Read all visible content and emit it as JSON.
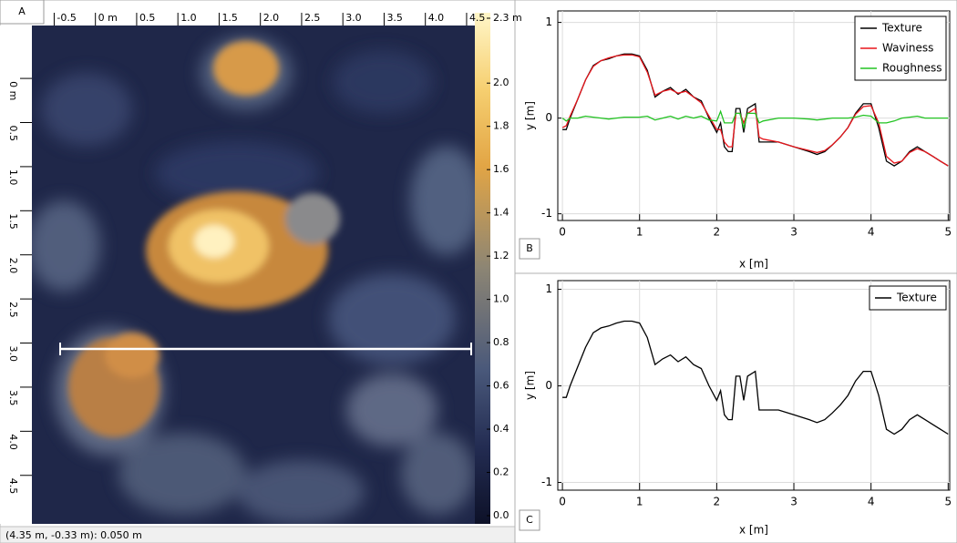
{
  "panel_a": {
    "label": "A",
    "status": "(4.35 m, -0.33 m): 0.050 m",
    "x_ruler": {
      "xlim": [
        -0.77,
        4.6
      ],
      "xticks": [
        -0.5,
        {
          "value": 0,
          "label": "0 m"
        },
        0.5,
        {
          "value": 1,
          "label": "1.0"
        },
        1.5,
        {
          "value": 2,
          "label": "2.0"
        },
        2.5,
        {
          "value": 3,
          "label": "3.0"
        },
        3.5,
        {
          "value": 4,
          "label": "4.0"
        },
        4.5
      ]
    },
    "y_ruler": {
      "ylim": [
        -0.6,
        5.05
      ],
      "yticks": [
        {
          "value": 0,
          "label": "0 m"
        },
        0.5,
        {
          "value": 1,
          "label": "1.0"
        },
        1.5,
        {
          "value": 2,
          "label": "2.0"
        },
        2.5,
        {
          "value": 3,
          "label": "3.0"
        },
        3.5,
        {
          "value": 4,
          "label": "4.0"
        },
        4.5
      ]
    },
    "colorbar": {
      "lim": [
        0,
        2.3
      ],
      "ticks": [
        {
          "value": 2.3,
          "label": "2.3 m"
        },
        {
          "value": 2,
          "label": "2.0"
        },
        1.8,
        1.6,
        1.4,
        1.2,
        {
          "value": 1,
          "label": "1.0"
        },
        0.8,
        0.6,
        0.4,
        0.2,
        {
          "value": 0,
          "label": "0.0"
        }
      ]
    }
  },
  "chart_data": [
    {
      "type": "line",
      "panel_label": "B",
      "x_label": "x [m]",
      "y_label": "y [m]",
      "xlim": [
        -0.06,
        5.02
      ],
      "ylim": [
        -1.07,
        1.12
      ],
      "xticks": [
        0,
        1,
        2,
        3,
        4,
        5
      ],
      "yticks": [
        -1,
        0,
        1
      ],
      "grid": true,
      "legend": "upper right",
      "x": [
        0,
        0.05,
        0.1,
        0.2,
        0.3,
        0.4,
        0.5,
        0.6,
        0.7,
        0.8,
        0.9,
        1.0,
        1.1,
        1.2,
        1.3,
        1.4,
        1.5,
        1.6,
        1.7,
        1.8,
        1.9,
        2.0,
        2.05,
        2.1,
        2.15,
        2.2,
        2.25,
        2.3,
        2.35,
        2.4,
        2.5,
        2.55,
        2.6,
        2.8,
        3.0,
        3.2,
        3.3,
        3.4,
        3.5,
        3.6,
        3.7,
        3.8,
        3.9,
        4.0,
        4.1,
        4.2,
        4.3,
        4.4,
        4.5,
        4.6,
        4.7,
        4.8,
        4.9,
        5.0
      ],
      "series": [
        {
          "name": "Texture",
          "color": "#000000",
          "values": [
            -0.12,
            -0.12,
            0,
            0.2,
            0.4,
            0.55,
            0.6,
            0.62,
            0.65,
            0.67,
            0.67,
            0.65,
            0.5,
            0.22,
            0.28,
            0.32,
            0.25,
            0.3,
            0.22,
            0.18,
            0,
            -0.15,
            -0.05,
            -0.3,
            -0.35,
            -0.35,
            0.1,
            0.1,
            -0.15,
            0.1,
            0.15,
            -0.25,
            -0.25,
            -0.25,
            -0.3,
            -0.35,
            -0.38,
            -0.35,
            -0.28,
            -0.2,
            -0.1,
            0.05,
            0.15,
            0.15,
            -0.1,
            -0.45,
            -0.5,
            -0.45,
            -0.35,
            -0.3,
            -0.35,
            -0.4,
            -0.45,
            -0.5
          ]
        },
        {
          "name": "Waviness",
          "color": "#e8151b",
          "values": [
            -0.1,
            -0.08,
            0.02,
            0.2,
            0.4,
            0.54,
            0.6,
            0.63,
            0.65,
            0.66,
            0.66,
            0.64,
            0.48,
            0.24,
            0.28,
            0.3,
            0.26,
            0.28,
            0.22,
            0.16,
            0.02,
            -0.12,
            -0.12,
            -0.25,
            -0.3,
            -0.3,
            0.05,
            0.05,
            -0.05,
            0.05,
            0.1,
            -0.2,
            -0.22,
            -0.25,
            -0.3,
            -0.34,
            -0.36,
            -0.34,
            -0.28,
            -0.2,
            -0.1,
            0.04,
            0.12,
            0.13,
            -0.05,
            -0.4,
            -0.47,
            -0.45,
            -0.36,
            -0.32,
            -0.35,
            -0.4,
            -0.45,
            -0.5
          ]
        },
        {
          "name": "Roughness",
          "color": "#22c322",
          "values": [
            0,
            -0.03,
            0,
            0,
            0.02,
            0.01,
            0,
            -0.01,
            0,
            0.01,
            0.01,
            0.01,
            0.02,
            -0.02,
            0,
            0.02,
            -0.01,
            0.02,
            0,
            0.02,
            -0.02,
            -0.03,
            0.07,
            -0.05,
            -0.05,
            -0.05,
            0.05,
            0.05,
            -0.1,
            0.05,
            0.05,
            -0.05,
            -0.03,
            0,
            0,
            -0.01,
            -0.02,
            -0.01,
            0,
            0,
            0,
            0.01,
            0.03,
            0.02,
            -0.05,
            -0.05,
            -0.03,
            0,
            0.01,
            0.02,
            0,
            0,
            0,
            0
          ]
        }
      ]
    },
    {
      "type": "line",
      "panel_label": "C",
      "x_label": "x [m]",
      "y_label": "y [m]",
      "xlim": [
        -0.06,
        5.02
      ],
      "ylim": [
        -1.08,
        1.09
      ],
      "xticks": [
        0,
        1,
        2,
        3,
        4,
        5
      ],
      "yticks": [
        -1,
        0,
        1
      ],
      "grid": true,
      "legend": "upper right",
      "x": [
        0,
        0.05,
        0.1,
        0.2,
        0.3,
        0.4,
        0.5,
        0.6,
        0.7,
        0.8,
        0.9,
        1.0,
        1.1,
        1.2,
        1.3,
        1.4,
        1.5,
        1.6,
        1.7,
        1.8,
        1.9,
        2.0,
        2.05,
        2.1,
        2.15,
        2.2,
        2.25,
        2.3,
        2.35,
        2.4,
        2.5,
        2.55,
        2.6,
        2.8,
        3.0,
        3.2,
        3.3,
        3.4,
        3.5,
        3.6,
        3.7,
        3.8,
        3.9,
        4.0,
        4.1,
        4.2,
        4.3,
        4.4,
        4.5,
        4.6,
        4.7,
        4.8,
        4.9,
        5.0
      ],
      "series": [
        {
          "name": "Texture",
          "color": "#000000",
          "values": [
            -0.12,
            -0.12,
            0,
            0.2,
            0.4,
            0.55,
            0.6,
            0.62,
            0.65,
            0.67,
            0.67,
            0.65,
            0.5,
            0.22,
            0.28,
            0.32,
            0.25,
            0.3,
            0.22,
            0.18,
            0,
            -0.15,
            -0.05,
            -0.3,
            -0.35,
            -0.35,
            0.1,
            0.1,
            -0.15,
            0.1,
            0.15,
            -0.25,
            -0.25,
            -0.25,
            -0.3,
            -0.35,
            -0.38,
            -0.35,
            -0.28,
            -0.2,
            -0.1,
            0.05,
            0.15,
            0.15,
            -0.1,
            -0.45,
            -0.5,
            -0.45,
            -0.35,
            -0.3,
            -0.35,
            -0.4,
            -0.45,
            -0.5
          ]
        }
      ]
    }
  ]
}
